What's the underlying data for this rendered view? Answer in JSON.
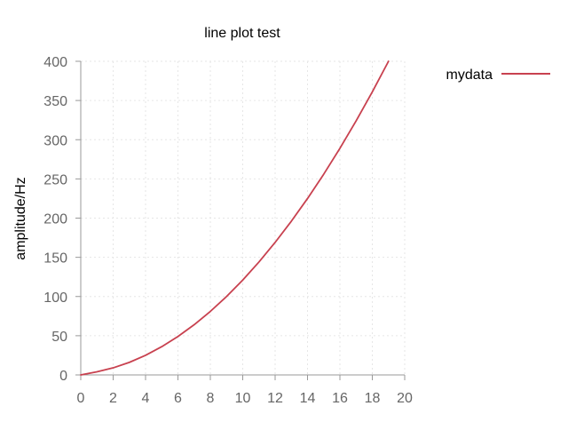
{
  "chart_data": {
    "type": "line",
    "title": "line plot test",
    "xlabel": "",
    "ylabel": "amplitude/Hz",
    "xlim": [
      0,
      20
    ],
    "ylim": [
      0,
      400
    ],
    "xticks": [
      0,
      2,
      4,
      6,
      8,
      10,
      12,
      14,
      16,
      18,
      20
    ],
    "yticks": [
      0,
      50,
      100,
      150,
      200,
      250,
      300,
      350,
      400
    ],
    "grid": true,
    "legend_position": "right",
    "series": [
      {
        "name": "mydata",
        "color": "#c8414f",
        "x": [
          0,
          1,
          2,
          3,
          4,
          5,
          6,
          7,
          8,
          9,
          10,
          11,
          12,
          13,
          14,
          15,
          16,
          17,
          18,
          19
        ],
        "y": [
          0,
          4,
          9,
          16,
          25,
          36,
          49,
          64,
          81,
          100,
          121,
          144,
          169,
          196,
          225,
          256,
          289,
          324,
          361,
          400
        ]
      }
    ]
  },
  "colors": {
    "grid": "#e6e6e6",
    "axis": "#999999",
    "tick_text": "#666666"
  }
}
